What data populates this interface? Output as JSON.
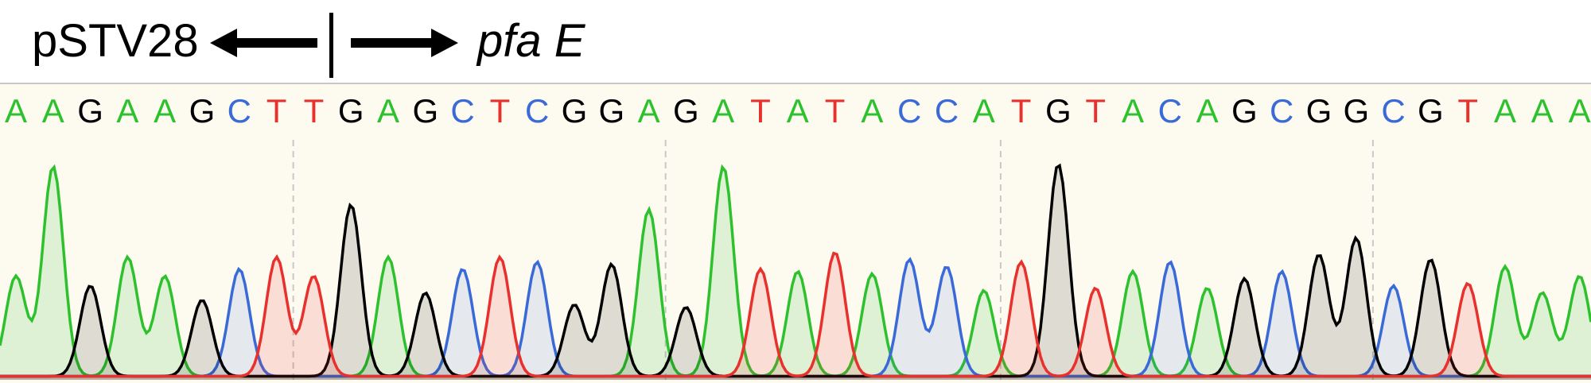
{
  "labels": {
    "left": "pSTV28",
    "right": "pfa E"
  },
  "sequence": "AAGAAGCTTGAGCTCGGAGATATACCATGTACAGCGGCGTAAA",
  "colors": {
    "A": "#2ec12e",
    "C": "#3a6ad8",
    "G": "#000000",
    "T": "#e8302c",
    "background": "#fdfaf0",
    "divider": "#c8c8c8"
  },
  "trace_peaks": [
    {
      "base": "A",
      "h": 0.42
    },
    {
      "base": "A",
      "h": 0.88
    },
    {
      "base": "G",
      "h": 0.38
    },
    {
      "base": "A",
      "h": 0.5
    },
    {
      "base": "A",
      "h": 0.42
    },
    {
      "base": "G",
      "h": 0.32
    },
    {
      "base": "C",
      "h": 0.45
    },
    {
      "base": "T",
      "h": 0.5
    },
    {
      "base": "T",
      "h": 0.42
    },
    {
      "base": "G",
      "h": 0.72
    },
    {
      "base": "A",
      "h": 0.5
    },
    {
      "base": "G",
      "h": 0.35
    },
    {
      "base": "C",
      "h": 0.45
    },
    {
      "base": "T",
      "h": 0.5
    },
    {
      "base": "C",
      "h": 0.48
    },
    {
      "base": "G",
      "h": 0.3
    },
    {
      "base": "G",
      "h": 0.47
    },
    {
      "base": "A",
      "h": 0.7
    },
    {
      "base": "G",
      "h": 0.29
    },
    {
      "base": "A",
      "h": 0.88
    },
    {
      "base": "T",
      "h": 0.45
    },
    {
      "base": "A",
      "h": 0.44
    },
    {
      "base": "T",
      "h": 0.52
    },
    {
      "base": "A",
      "h": 0.43
    },
    {
      "base": "C",
      "h": 0.49
    },
    {
      "base": "C",
      "h": 0.46
    },
    {
      "base": "A",
      "h": 0.36
    },
    {
      "base": "T",
      "h": 0.48
    },
    {
      "base": "G",
      "h": 0.89
    },
    {
      "base": "T",
      "h": 0.37
    },
    {
      "base": "A",
      "h": 0.44
    },
    {
      "base": "C",
      "h": 0.48
    },
    {
      "base": "A",
      "h": 0.37
    },
    {
      "base": "G",
      "h": 0.41
    },
    {
      "base": "C",
      "h": 0.44
    },
    {
      "base": "G",
      "h": 0.51
    },
    {
      "base": "G",
      "h": 0.58
    },
    {
      "base": "C",
      "h": 0.38
    },
    {
      "base": "G",
      "h": 0.49
    },
    {
      "base": "T",
      "h": 0.39
    },
    {
      "base": "A",
      "h": 0.46
    },
    {
      "base": "A",
      "h": 0.35
    },
    {
      "base": "A",
      "h": 0.42
    }
  ]
}
